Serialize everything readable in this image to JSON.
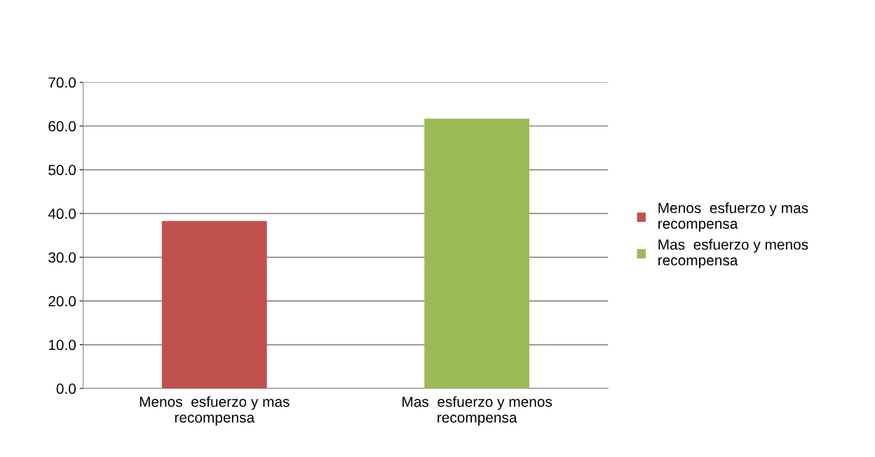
{
  "chart_data": {
    "type": "bar",
    "categories": [
      "Menos  esfuerzo y mas recompensa",
      "Mas  esfuerzo y menos recompensa"
    ],
    "series": [
      {
        "name": "Menos  esfuerzo y mas recompensa",
        "color": "#c0504d",
        "values": [
          38.3,
          null
        ]
      },
      {
        "name": "Mas  esfuerzo y menos recompensa",
        "color": "#9bbb59",
        "values": [
          null,
          61.7
        ]
      }
    ],
    "ylim": [
      0,
      70
    ],
    "yticks": [
      {
        "value": 0,
        "label": "0.0"
      },
      {
        "value": 10,
        "label": "10.0"
      },
      {
        "value": 20,
        "label": "20.0"
      },
      {
        "value": 30,
        "label": "30.0"
      },
      {
        "value": 40,
        "label": "40.0"
      },
      {
        "value": 50,
        "label": "50.0"
      },
      {
        "value": 60,
        "label": "60.0"
      },
      {
        "value": 70,
        "label": "70.0"
      }
    ],
    "grid": "y",
    "legend": "right"
  }
}
